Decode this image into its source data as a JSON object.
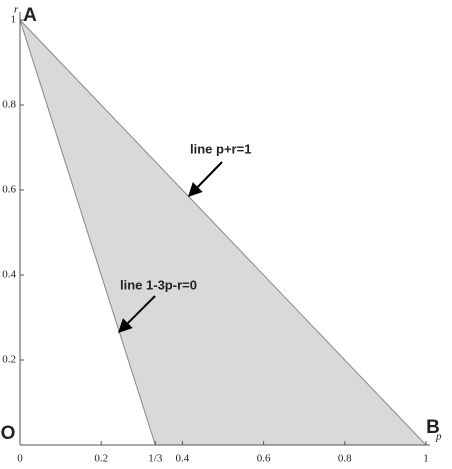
{
  "chart_data": {
    "type": "polygon",
    "x": [
      0,
      1,
      0.3333
    ],
    "y": [
      1,
      0,
      0
    ],
    "color": "#d9d9d9",
    "x_label": "p",
    "y_label": "r",
    "xlim": [
      0,
      1
    ],
    "ylim": [
      0,
      1
    ],
    "xticks": [
      0,
      0.2,
      {
        "value": 0.3333,
        "label": "1/3"
      },
      0.4,
      0.6,
      0.8,
      1
    ],
    "yticks": [
      0,
      0.2,
      0.4,
      0.6,
      0.8,
      1
    ],
    "point_labels": [
      "A",
      "B",
      "O"
    ],
    "annotations": [
      "line p+r=1",
      "line 1-3p-r=0"
    ]
  }
}
